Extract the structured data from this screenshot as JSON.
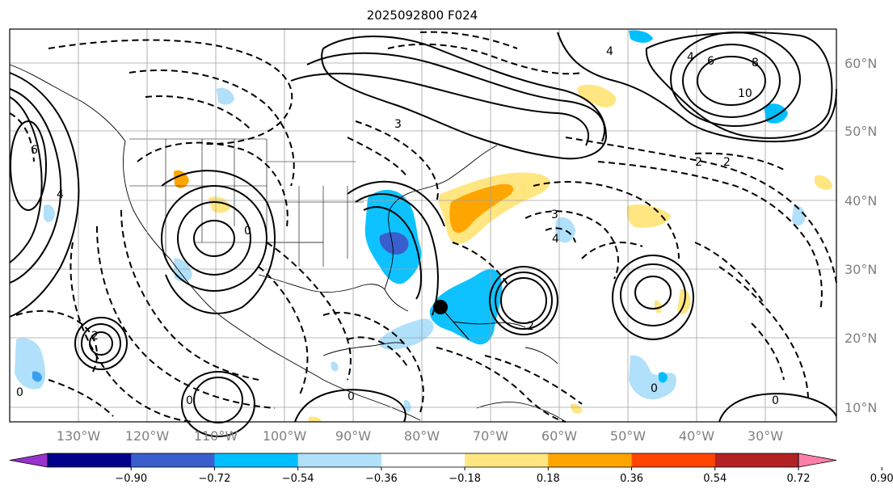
{
  "title": "2025092800 F024",
  "map": {
    "lat_labels": [
      "60°N",
      "50°N",
      "40°N",
      "30°N",
      "20°N",
      "10°N"
    ],
    "lon_labels": [
      "130°W",
      "120°W",
      "110°W",
      "100°W",
      "90°W",
      "80°W",
      "70°W",
      "60°W",
      "50°W",
      "40°W",
      "30°W"
    ],
    "contour_labels": [
      "10",
      "8",
      "6",
      "4",
      "4",
      "6",
      "4",
      "2",
      "2",
      "3",
      "3",
      "0",
      "0",
      "0",
      "2",
      "2",
      "4",
      "0",
      "0",
      "0"
    ]
  },
  "colorbar": {
    "ticks": [
      "−0.90",
      "−0.72",
      "−0.54",
      "−0.36",
      "−0.18",
      "0.18",
      "0.36",
      "0.54",
      "0.72",
      "0.90"
    ],
    "colors": [
      "#9932cc",
      "#00008b",
      "#3a5fcd",
      "#00bfff",
      "#b0e0fa",
      "#ffffff",
      "#ffe680",
      "#ffa500",
      "#ff4500",
      "#b22222",
      "#ff7faa"
    ]
  }
}
